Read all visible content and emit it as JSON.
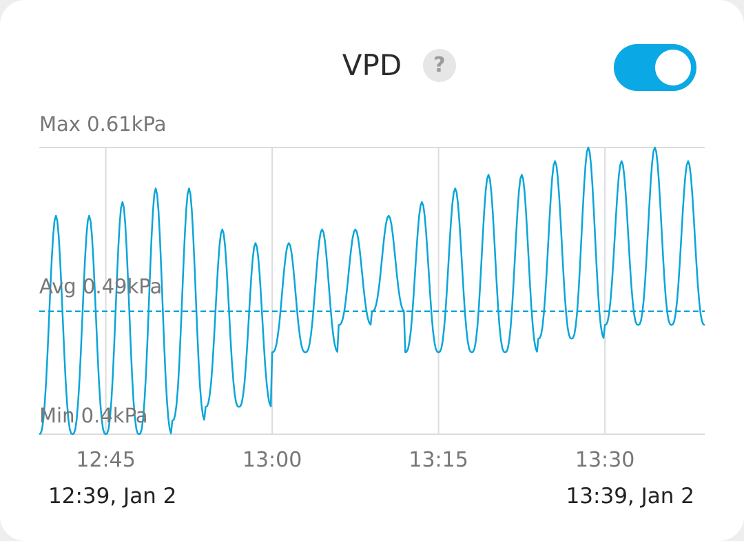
{
  "header": {
    "title": "VPD",
    "help_symbol": "?",
    "toggle_on": true
  },
  "colors": {
    "series": "#0aa5d9",
    "grid": "#dcdcdc",
    "label": "#777777",
    "toggle": "#0aa9e6"
  },
  "chart_data": {
    "type": "line",
    "labels": {
      "max": "Max 0.61kPa",
      "avg": "Avg 0.49kPa",
      "min": "Min 0.4kPa"
    },
    "ylim": [
      0.4,
      0.61
    ],
    "avg": 0.49,
    "x_range_min": [
      0,
      60
    ],
    "x_ticks": [
      {
        "min": 6,
        "label": "12:45"
      },
      {
        "min": 21,
        "label": "13:00"
      },
      {
        "min": 36,
        "label": "13:15"
      },
      {
        "min": 51,
        "label": "13:30"
      }
    ],
    "start_label": "12:39, Jan 2",
    "end_label": "13:39, Jan 2",
    "series": [
      {
        "cycles": [
          {
            "peak": 0.56,
            "trough": 0.4
          },
          {
            "peak": 0.56,
            "trough": 0.4
          },
          {
            "peak": 0.57,
            "trough": 0.4
          },
          {
            "peak": 0.58,
            "trough": 0.4
          },
          {
            "peak": 0.58,
            "trough": 0.41
          },
          {
            "peak": 0.55,
            "trough": 0.42
          },
          {
            "peak": 0.54,
            "trough": 0.42
          },
          {
            "peak": 0.54,
            "trough": 0.46
          },
          {
            "peak": 0.55,
            "trough": 0.46
          },
          {
            "peak": 0.55,
            "trough": 0.48
          },
          {
            "peak": 0.56,
            "trough": 0.49
          },
          {
            "peak": 0.57,
            "trough": 0.46
          },
          {
            "peak": 0.58,
            "trough": 0.46
          },
          {
            "peak": 0.59,
            "trough": 0.46
          },
          {
            "peak": 0.59,
            "trough": 0.46
          },
          {
            "peak": 0.6,
            "trough": 0.47
          },
          {
            "peak": 0.61,
            "trough": 0.47
          },
          {
            "peak": 0.6,
            "trough": 0.48
          },
          {
            "peak": 0.61,
            "trough": 0.48
          },
          {
            "peak": 0.6,
            "trough": 0.48
          }
        ]
      }
    ]
  }
}
